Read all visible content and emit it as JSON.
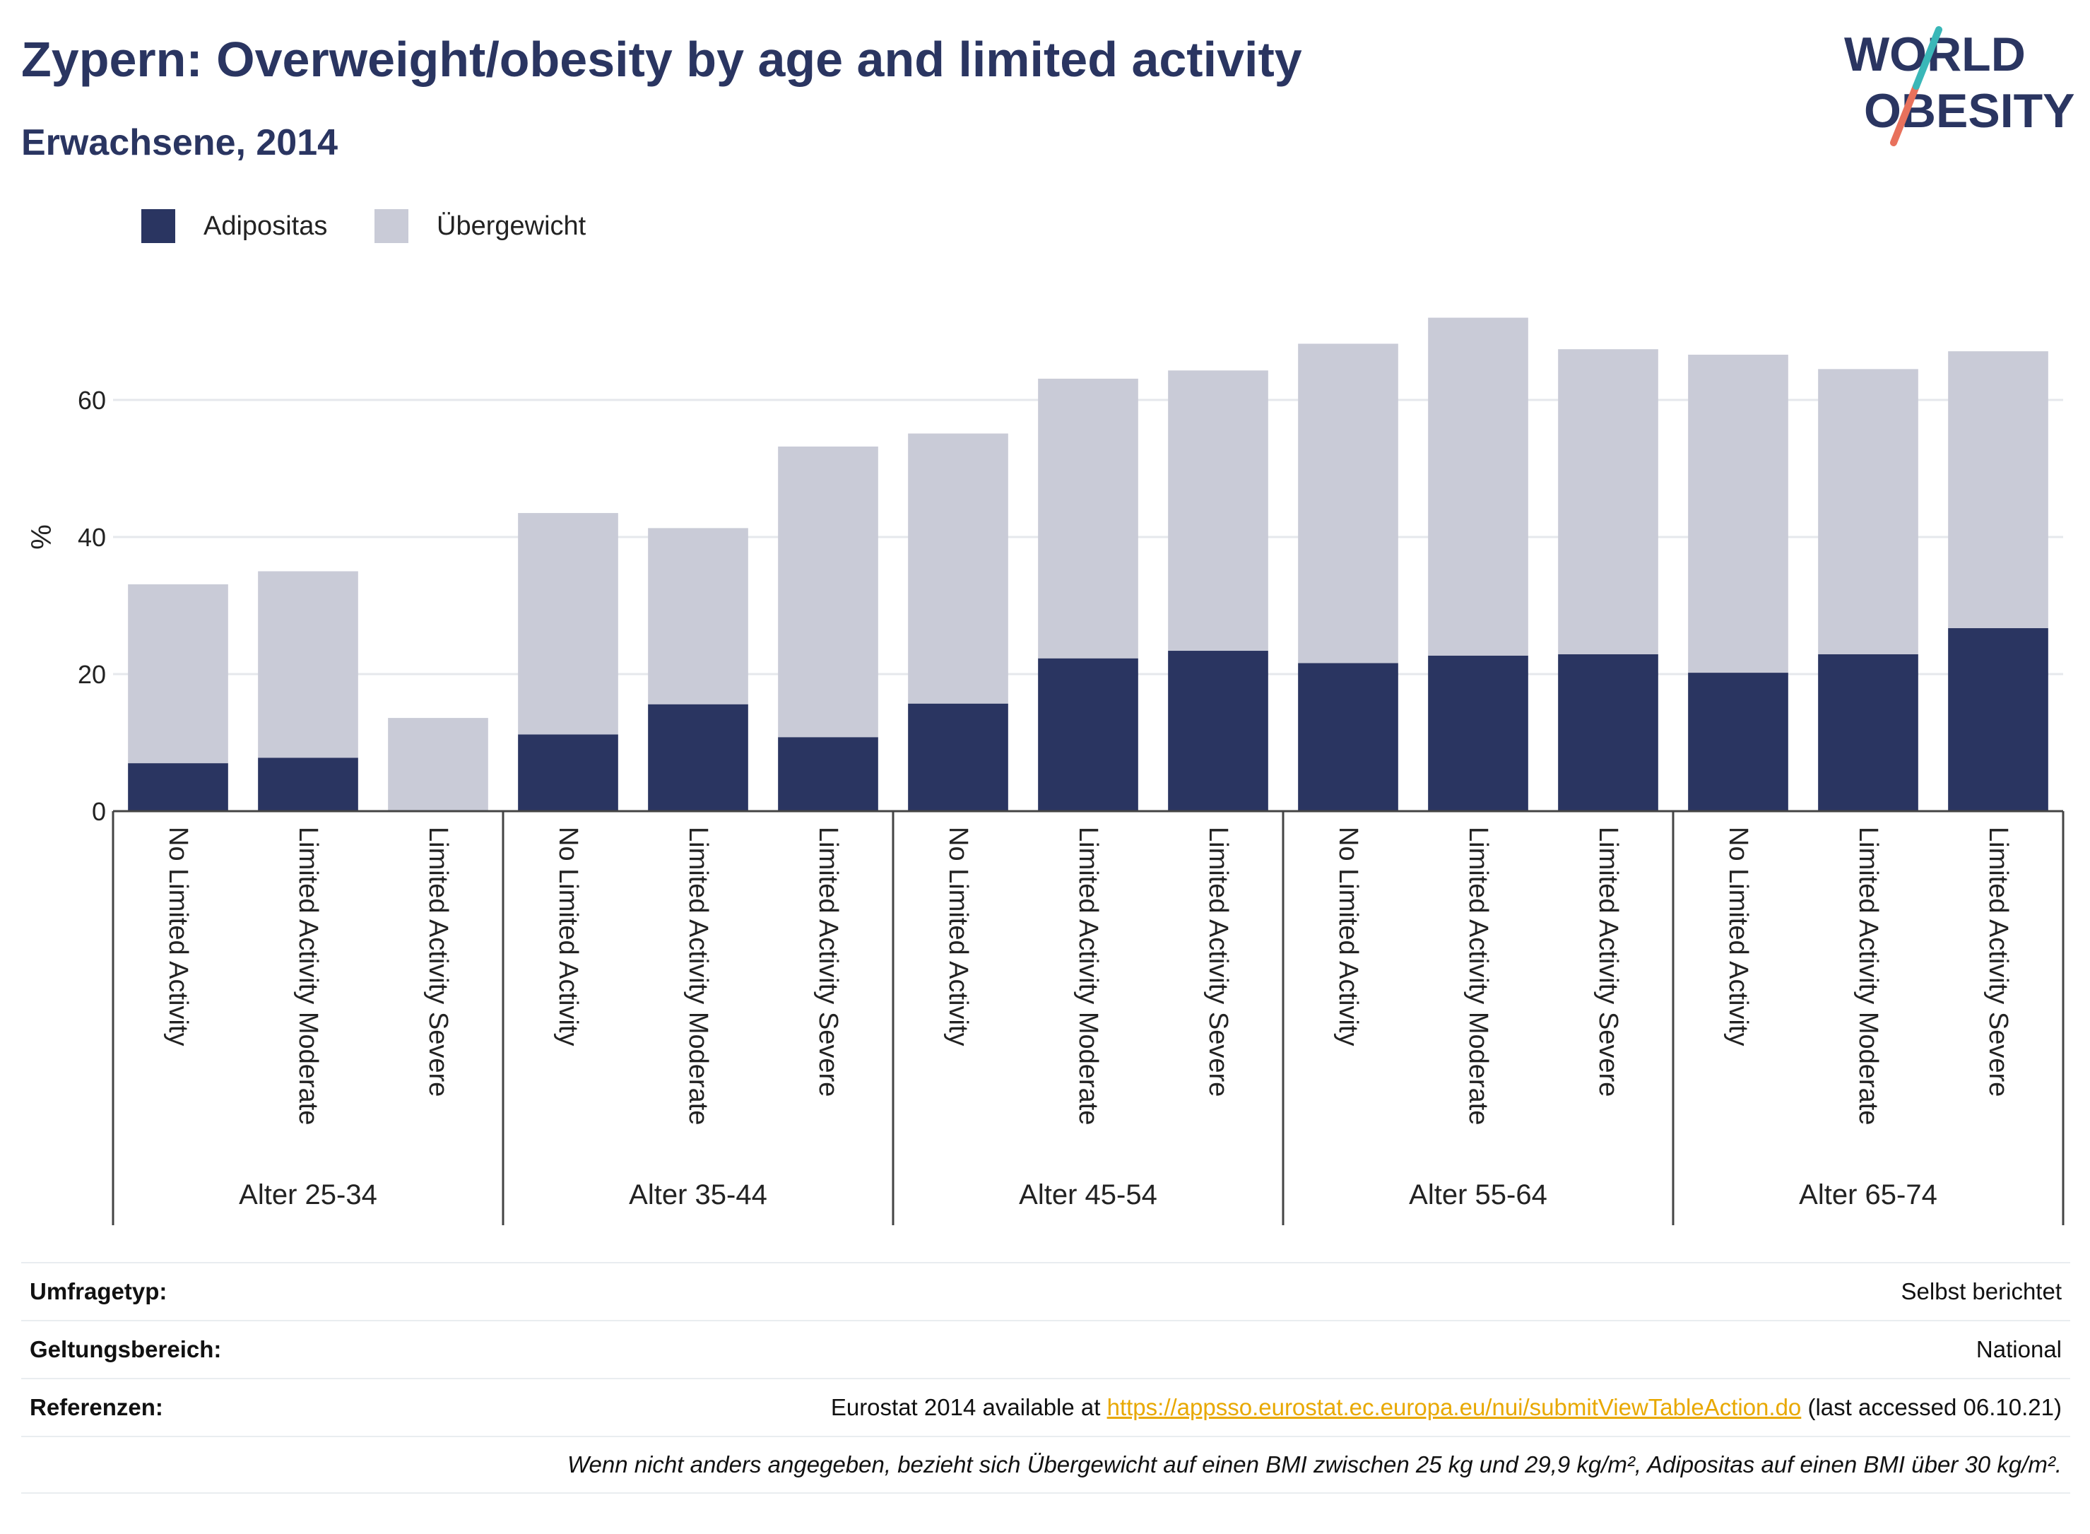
{
  "title": "Zypern: Overweight/obesity by age and limited activity",
  "subtitle": "Erwachsene, 2014",
  "logo": {
    "line1": "WORLD",
    "line2": "OBESITY"
  },
  "colors": {
    "obesity": "#2a3561",
    "overweight": "#c9cbd7",
    "grid": "#e6e8ec",
    "axis": "#444444"
  },
  "chart_data": {
    "type": "bar",
    "stacked": true,
    "ylabel": "%",
    "ylim": [
      0,
      80
    ],
    "yticks": [
      0,
      20,
      40,
      60
    ],
    "grid": true,
    "legend_position": "top-left",
    "groups": [
      "Alter 25-34",
      "Alter 35-44",
      "Alter 45-54",
      "Alter 55-64",
      "Alter 65-74"
    ],
    "categories": [
      "No Limited Activity",
      "Limited Activity Moderate",
      "Limited Activity Severe",
      "No Limited Activity",
      "Limited Activity Moderate",
      "Limited Activity Severe",
      "No Limited Activity",
      "Limited Activity Moderate",
      "Limited Activity Severe",
      "No Limited Activity",
      "Limited Activity Moderate",
      "Limited Activity Severe",
      "No Limited Activity",
      "Limited Activity Moderate",
      "Limited Activity Severe"
    ],
    "series": [
      {
        "name": "Adipositas",
        "values": [
          7.0,
          7.8,
          0,
          11.2,
          15.6,
          10.8,
          15.7,
          22.3,
          23.4,
          21.6,
          22.7,
          22.9,
          20.2,
          22.9,
          26.7
        ]
      },
      {
        "name": "Übergewicht",
        "values": [
          26.1,
          27.2,
          13.6,
          32.3,
          25.7,
          42.4,
          39.4,
          40.8,
          40.9,
          46.6,
          49.3,
          44.5,
          46.4,
          41.6,
          40.4
        ]
      }
    ]
  },
  "footer": {
    "survey_type_label": "Umfragetyp:",
    "survey_type_value": "Selbst berichtet",
    "scope_label": "Geltungsbereich:",
    "scope_value": "National",
    "references_label": "Referenzen:",
    "references_prefix": "Eurostat 2014 available at",
    "references_link": "https://appsso.eurostat.ec.europa.eu/nui/submitViewTableAction.do",
    "references_suffix": "(last accessed 06.10.21)",
    "note": "Wenn nicht anders angegeben, bezieht sich Übergewicht auf einen BMI zwischen 25 kg und 29,9 kg/m², Adipositas auf einen BMI über 30 kg/m²."
  }
}
